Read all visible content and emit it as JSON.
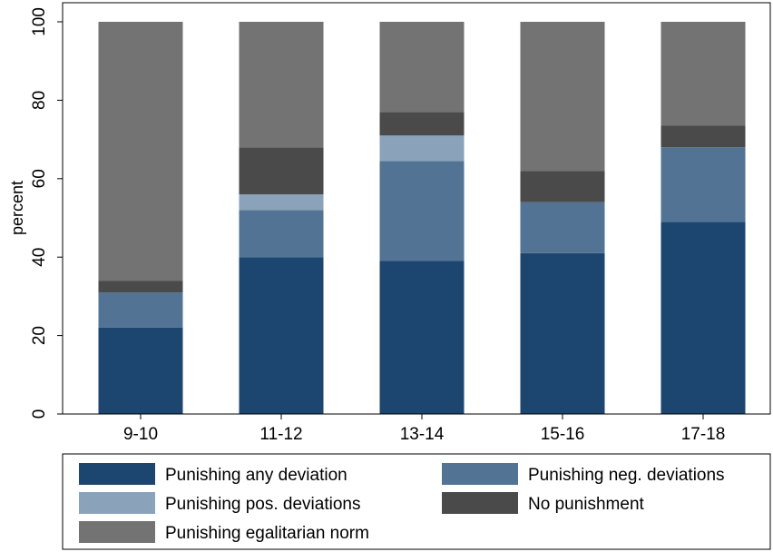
{
  "chart_data": {
    "type": "bar",
    "stacked": true,
    "title": "",
    "xlabel": "",
    "ylabel": "percent",
    "ylim": [
      0,
      100
    ],
    "yticks": [
      0,
      20,
      40,
      60,
      80,
      100
    ],
    "grid": false,
    "legend_position": "bottom",
    "categories": [
      "9-10",
      "11-12",
      "13-14",
      "15-16",
      "17-18"
    ],
    "series": [
      {
        "name": "Punishing any deviation",
        "color": "#1c4670",
        "values": [
          22,
          40,
          39,
          41,
          49
        ]
      },
      {
        "name": "Punishing neg. deviations",
        "color": "#527394",
        "values": [
          9,
          12,
          25.5,
          13,
          19
        ]
      },
      {
        "name": "Punishing pos. deviations",
        "color": "#8aa2ba",
        "values": [
          0,
          4,
          6.5,
          0,
          0
        ]
      },
      {
        "name": "No punishment",
        "color": "#4a4a4a",
        "values": [
          3,
          12,
          6,
          8,
          5.5
        ]
      },
      {
        "name": "Punishing egalitarian norm",
        "color": "#737373",
        "values": [
          66,
          32,
          23,
          38,
          26.5
        ]
      }
    ]
  }
}
